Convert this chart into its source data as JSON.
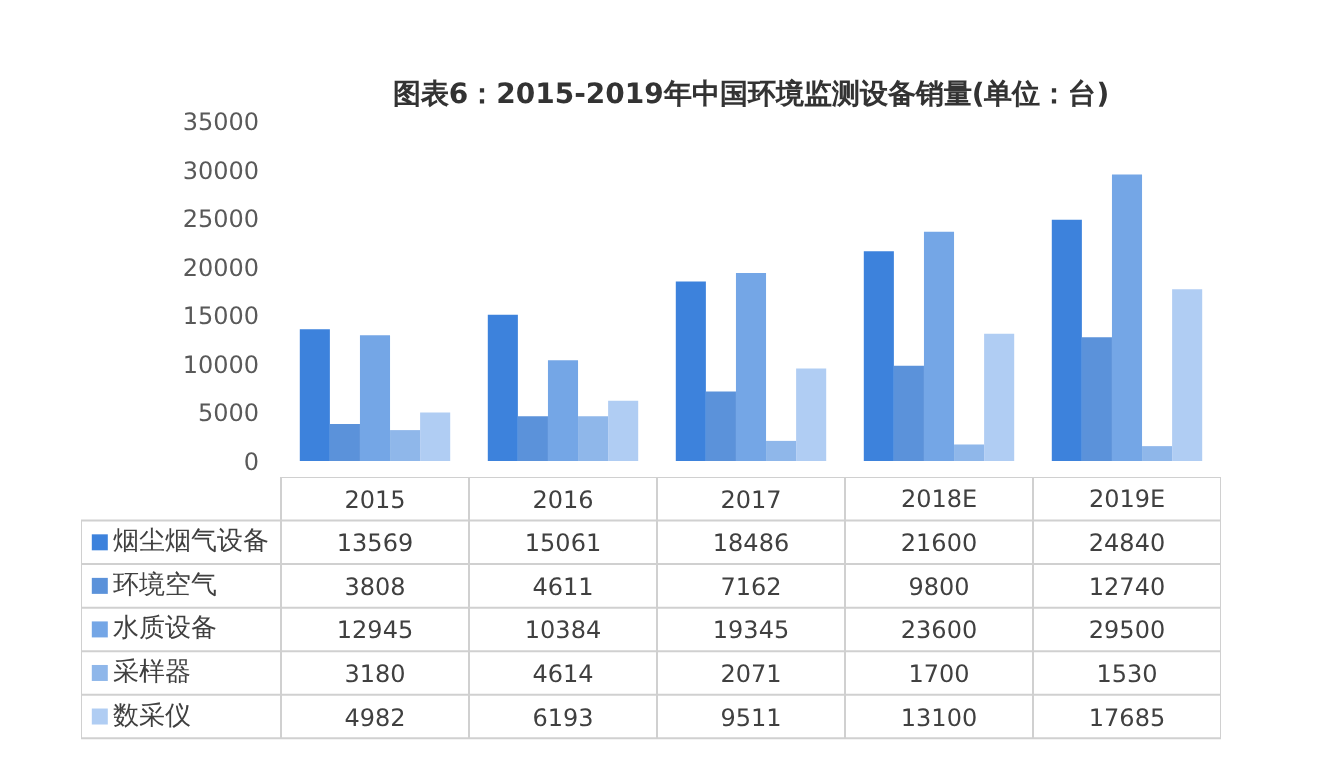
{
  "chart_data": {
    "type": "bar",
    "title": "图表6：2015-2019年中国环境监测设备销量(单位：台)",
    "categories": [
      "2015",
      "2016",
      "2017",
      "2018E",
      "2019E"
    ],
    "series": [
      {
        "name": "烟尘烟气设备",
        "color": "#3d82dc",
        "values": [
          13569,
          15061,
          18486,
          21600,
          24840
        ]
      },
      {
        "name": "环境空气",
        "color": "#5b92da",
        "values": [
          3808,
          4611,
          7162,
          9800,
          12740
        ]
      },
      {
        "name": "水质设备",
        "color": "#74a6e6",
        "values": [
          12945,
          10384,
          19345,
          23600,
          29500
        ]
      },
      {
        "name": "采样器",
        "color": "#8fb7ea",
        "values": [
          3180,
          4614,
          2071,
          1700,
          1530
        ]
      },
      {
        "name": "数采仪",
        "color": "#b0cdf3",
        "values": [
          4982,
          6193,
          9511,
          13100,
          17685
        ]
      }
    ],
    "ylim": [
      0,
      35000
    ],
    "yticks": [
      0,
      5000,
      10000,
      15000,
      20000,
      25000,
      30000,
      35000
    ],
    "data_labels": true,
    "legend": "bottom"
  }
}
